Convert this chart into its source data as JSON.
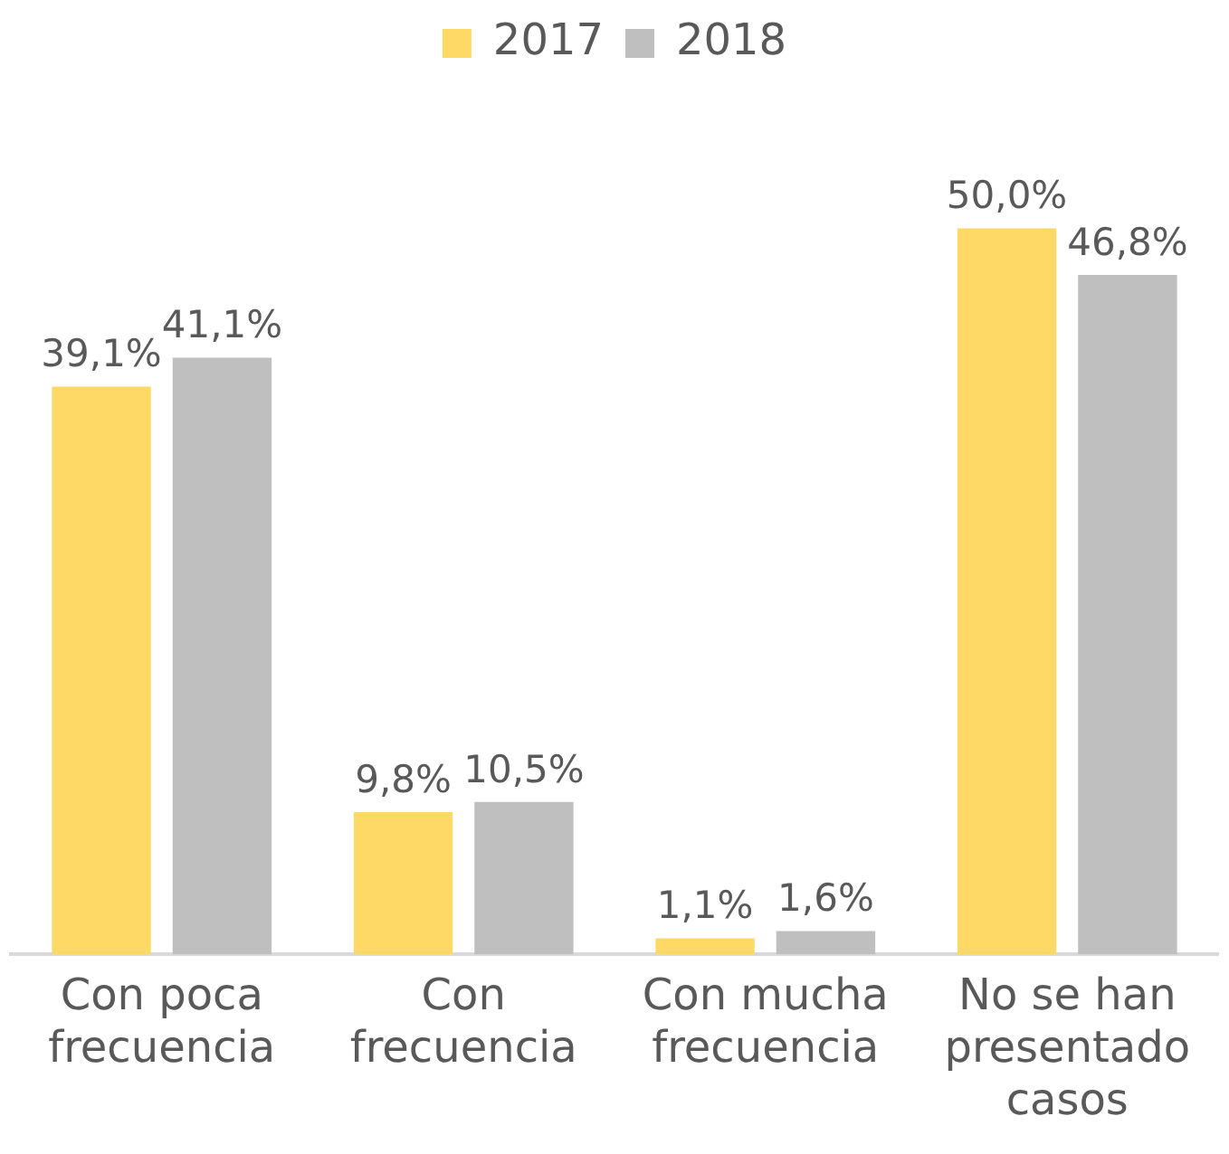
{
  "chart_data": {
    "type": "bar",
    "categories": [
      "Con poca frecuencia",
      "Con frecuencia",
      "Con mucha frecuencia",
      "No se han presentado casos"
    ],
    "series": [
      {
        "name": "2017",
        "color": "#ffd966",
        "values": [
          39.1,
          9.8,
          1.1,
          50.0
        ],
        "value_labels": [
          "39,1%",
          "9,8%",
          "1,1%",
          "50,0%"
        ]
      },
      {
        "name": "2018",
        "color": "#bfbfbf",
        "values": [
          41.1,
          10.5,
          1.6,
          46.8
        ],
        "value_labels": [
          "41,1%",
          "10,5%",
          "1,6%",
          "46,8%"
        ]
      }
    ],
    "legend": "top",
    "grid": false
  }
}
